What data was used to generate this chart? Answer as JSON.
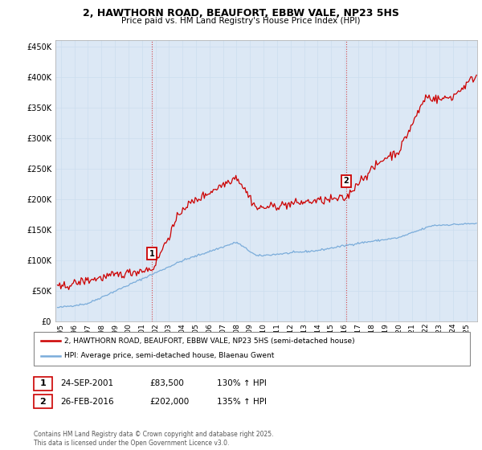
{
  "title_line1": "2, HAWTHORN ROAD, BEAUFORT, EBBW VALE, NP23 5HS",
  "title_line2": "Price paid vs. HM Land Registry's House Price Index (HPI)",
  "ytick_vals": [
    0,
    50000,
    100000,
    150000,
    200000,
    250000,
    300000,
    350000,
    400000,
    450000
  ],
  "ylim": [
    0,
    460000
  ],
  "xlim_start": 1994.6,
  "xlim_end": 2025.8,
  "xticks": [
    1995,
    1996,
    1997,
    1998,
    1999,
    2000,
    2001,
    2002,
    2003,
    2004,
    2005,
    2006,
    2007,
    2008,
    2009,
    2010,
    2011,
    2012,
    2013,
    2014,
    2015,
    2016,
    2017,
    2018,
    2019,
    2020,
    2021,
    2022,
    2023,
    2024,
    2025
  ],
  "red_line_color": "#cc0000",
  "blue_line_color": "#7aacda",
  "transaction1_x": 2001.73,
  "transaction1_y": 83500,
  "transaction1_label": "1",
  "transaction2_x": 2016.12,
  "transaction2_y": 202000,
  "transaction2_label": "2",
  "legend_red_label": "2, HAWTHORN ROAD, BEAUFORT, EBBW VALE, NP23 5HS (semi-detached house)",
  "legend_blue_label": "HPI: Average price, semi-detached house, Blaenau Gwent",
  "table_row1": [
    "1",
    "24-SEP-2001",
    "£83,500",
    "130% ↑ HPI"
  ],
  "table_row2": [
    "2",
    "26-FEB-2016",
    "£202,000",
    "135% ↑ HPI"
  ],
  "footnote": "Contains HM Land Registry data © Crown copyright and database right 2025.\nThis data is licensed under the Open Government Licence v3.0.",
  "grid_color": "#ccddee",
  "vline_color": "#cc0000",
  "panel_bg": "#dce8f5"
}
